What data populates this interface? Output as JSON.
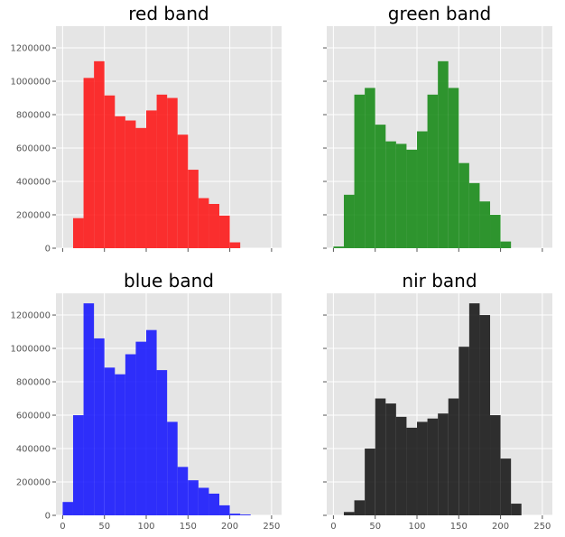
{
  "chart_data": [
    {
      "type": "bar",
      "title": "red band",
      "color": "#ff0000",
      "bin_width": 12.5,
      "bin_left_edges": [
        12.5,
        25,
        37.5,
        50,
        62.5,
        75,
        87.5,
        100,
        112.5,
        125,
        137.5,
        150,
        162.5,
        175,
        187.5,
        200
      ],
      "values": [
        180000,
        1020000,
        1120000,
        915000,
        790000,
        765000,
        720000,
        825000,
        920000,
        900000,
        680000,
        470000,
        300000,
        265000,
        195000,
        35000
      ],
      "xlim": [
        -8,
        262
      ],
      "ylim": [
        0,
        1330000
      ],
      "yticks": [
        0,
        200000,
        400000,
        600000,
        800000,
        1000000,
        1200000
      ],
      "ytick_labels": [
        "0",
        "200000",
        "400000",
        "600000",
        "800000",
        "1000000",
        "1200000"
      ],
      "xticks": [
        0,
        50,
        100,
        150,
        200,
        250
      ],
      "xtick_labels": []
    },
    {
      "type": "bar",
      "title": "green band",
      "color": "#008000",
      "bin_width": 12.5,
      "bin_left_edges": [
        0,
        12.5,
        25,
        37.5,
        50,
        62.5,
        75,
        87.5,
        100,
        112.5,
        125,
        137.5,
        150,
        162.5,
        175,
        187.5,
        200
      ],
      "values": [
        10000,
        320000,
        920000,
        960000,
        740000,
        640000,
        625000,
        590000,
        700000,
        920000,
        1120000,
        960000,
        510000,
        390000,
        280000,
        200000,
        40000
      ],
      "xlim": [
        -8,
        262
      ],
      "ylim": [
        0,
        1330000
      ],
      "yticks": [
        0,
        200000,
        400000,
        600000,
        800000,
        1000000,
        1200000
      ],
      "ytick_labels": [],
      "xticks": [
        0,
        50,
        100,
        150,
        200,
        250
      ],
      "xtick_labels": []
    },
    {
      "type": "bar",
      "title": "blue band",
      "color": "#0000ff",
      "bin_width": 12.5,
      "bin_left_edges": [
        0,
        12.5,
        25,
        37.5,
        50,
        62.5,
        75,
        87.5,
        100,
        112.5,
        125,
        137.5,
        150,
        162.5,
        175,
        187.5,
        200,
        212.5
      ],
      "values": [
        80000,
        600000,
        1270000,
        1060000,
        885000,
        845000,
        965000,
        1040000,
        1110000,
        870000,
        560000,
        290000,
        210000,
        165000,
        130000,
        60000,
        10000,
        5000
      ],
      "xlim": [
        -8,
        262
      ],
      "ylim": [
        0,
        1330000
      ],
      "yticks": [
        0,
        200000,
        400000,
        600000,
        800000,
        1000000,
        1200000
      ],
      "ytick_labels": [
        "0",
        "200000",
        "400000",
        "600000",
        "800000",
        "1000000",
        "1200000"
      ],
      "xticks": [
        0,
        50,
        100,
        150,
        200,
        250
      ],
      "xtick_labels": [
        "0",
        "50",
        "100",
        "150",
        "200",
        "250"
      ]
    },
    {
      "type": "bar",
      "title": "nir band",
      "color": "#000000",
      "bin_width": 12.5,
      "bin_left_edges": [
        12.5,
        25,
        37.5,
        50,
        62.5,
        75,
        87.5,
        100,
        112.5,
        125,
        137.5,
        150,
        162.5,
        175,
        187.5,
        200,
        212.5
      ],
      "values": [
        20000,
        90000,
        400000,
        700000,
        670000,
        590000,
        525000,
        560000,
        580000,
        610000,
        700000,
        1010000,
        1270000,
        1200000,
        600000,
        340000,
        70000
      ],
      "xlim": [
        -8,
        262
      ],
      "ylim": [
        0,
        1330000
      ],
      "yticks": [
        0,
        200000,
        400000,
        600000,
        800000,
        1000000,
        1200000
      ],
      "ytick_labels": [],
      "xticks": [
        0,
        50,
        100,
        150,
        200,
        250
      ],
      "xtick_labels": [
        "0",
        "50",
        "100",
        "150",
        "200",
        "250"
      ]
    }
  ]
}
